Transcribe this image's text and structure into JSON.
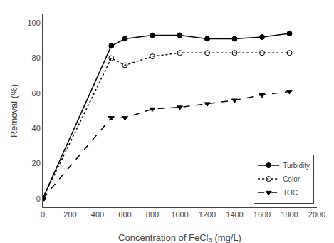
{
  "chart_data": {
    "type": "line",
    "x": [
      0,
      500,
      600,
      800,
      1000,
      1200,
      1400,
      1600,
      1800
    ],
    "series": [
      {
        "name": "Turbidity",
        "color": "black",
        "marker": "circle",
        "line_style": "solid",
        "values": [
          0,
          87,
          91,
          93,
          93,
          91,
          91,
          92,
          94
        ]
      },
      {
        "name": "Color",
        "color": "black",
        "marker": "circle-open",
        "line_style": "dot",
        "values": [
          0,
          80,
          76,
          81,
          83,
          83,
          83,
          83,
          83
        ]
      },
      {
        "name": "TOC",
        "color": "black",
        "marker": "triangle-down",
        "line_style": "dash",
        "values": [
          0,
          46,
          46,
          51,
          52,
          54,
          56,
          59,
          61
        ]
      }
    ],
    "xlabel": "Concentration of FeCl₃ (mg/L)",
    "ylabel": "Removal (%)",
    "xlim": [
      0,
      2000
    ],
    "ylim": [
      -5,
      105
    ],
    "xticks": [
      0,
      200,
      400,
      600,
      800,
      1000,
      1200,
      1400,
      1600,
      1800,
      2000
    ],
    "yticks": [
      0,
      20,
      40,
      60,
      80,
      100
    ],
    "grid": false,
    "legend": "lower right"
  }
}
